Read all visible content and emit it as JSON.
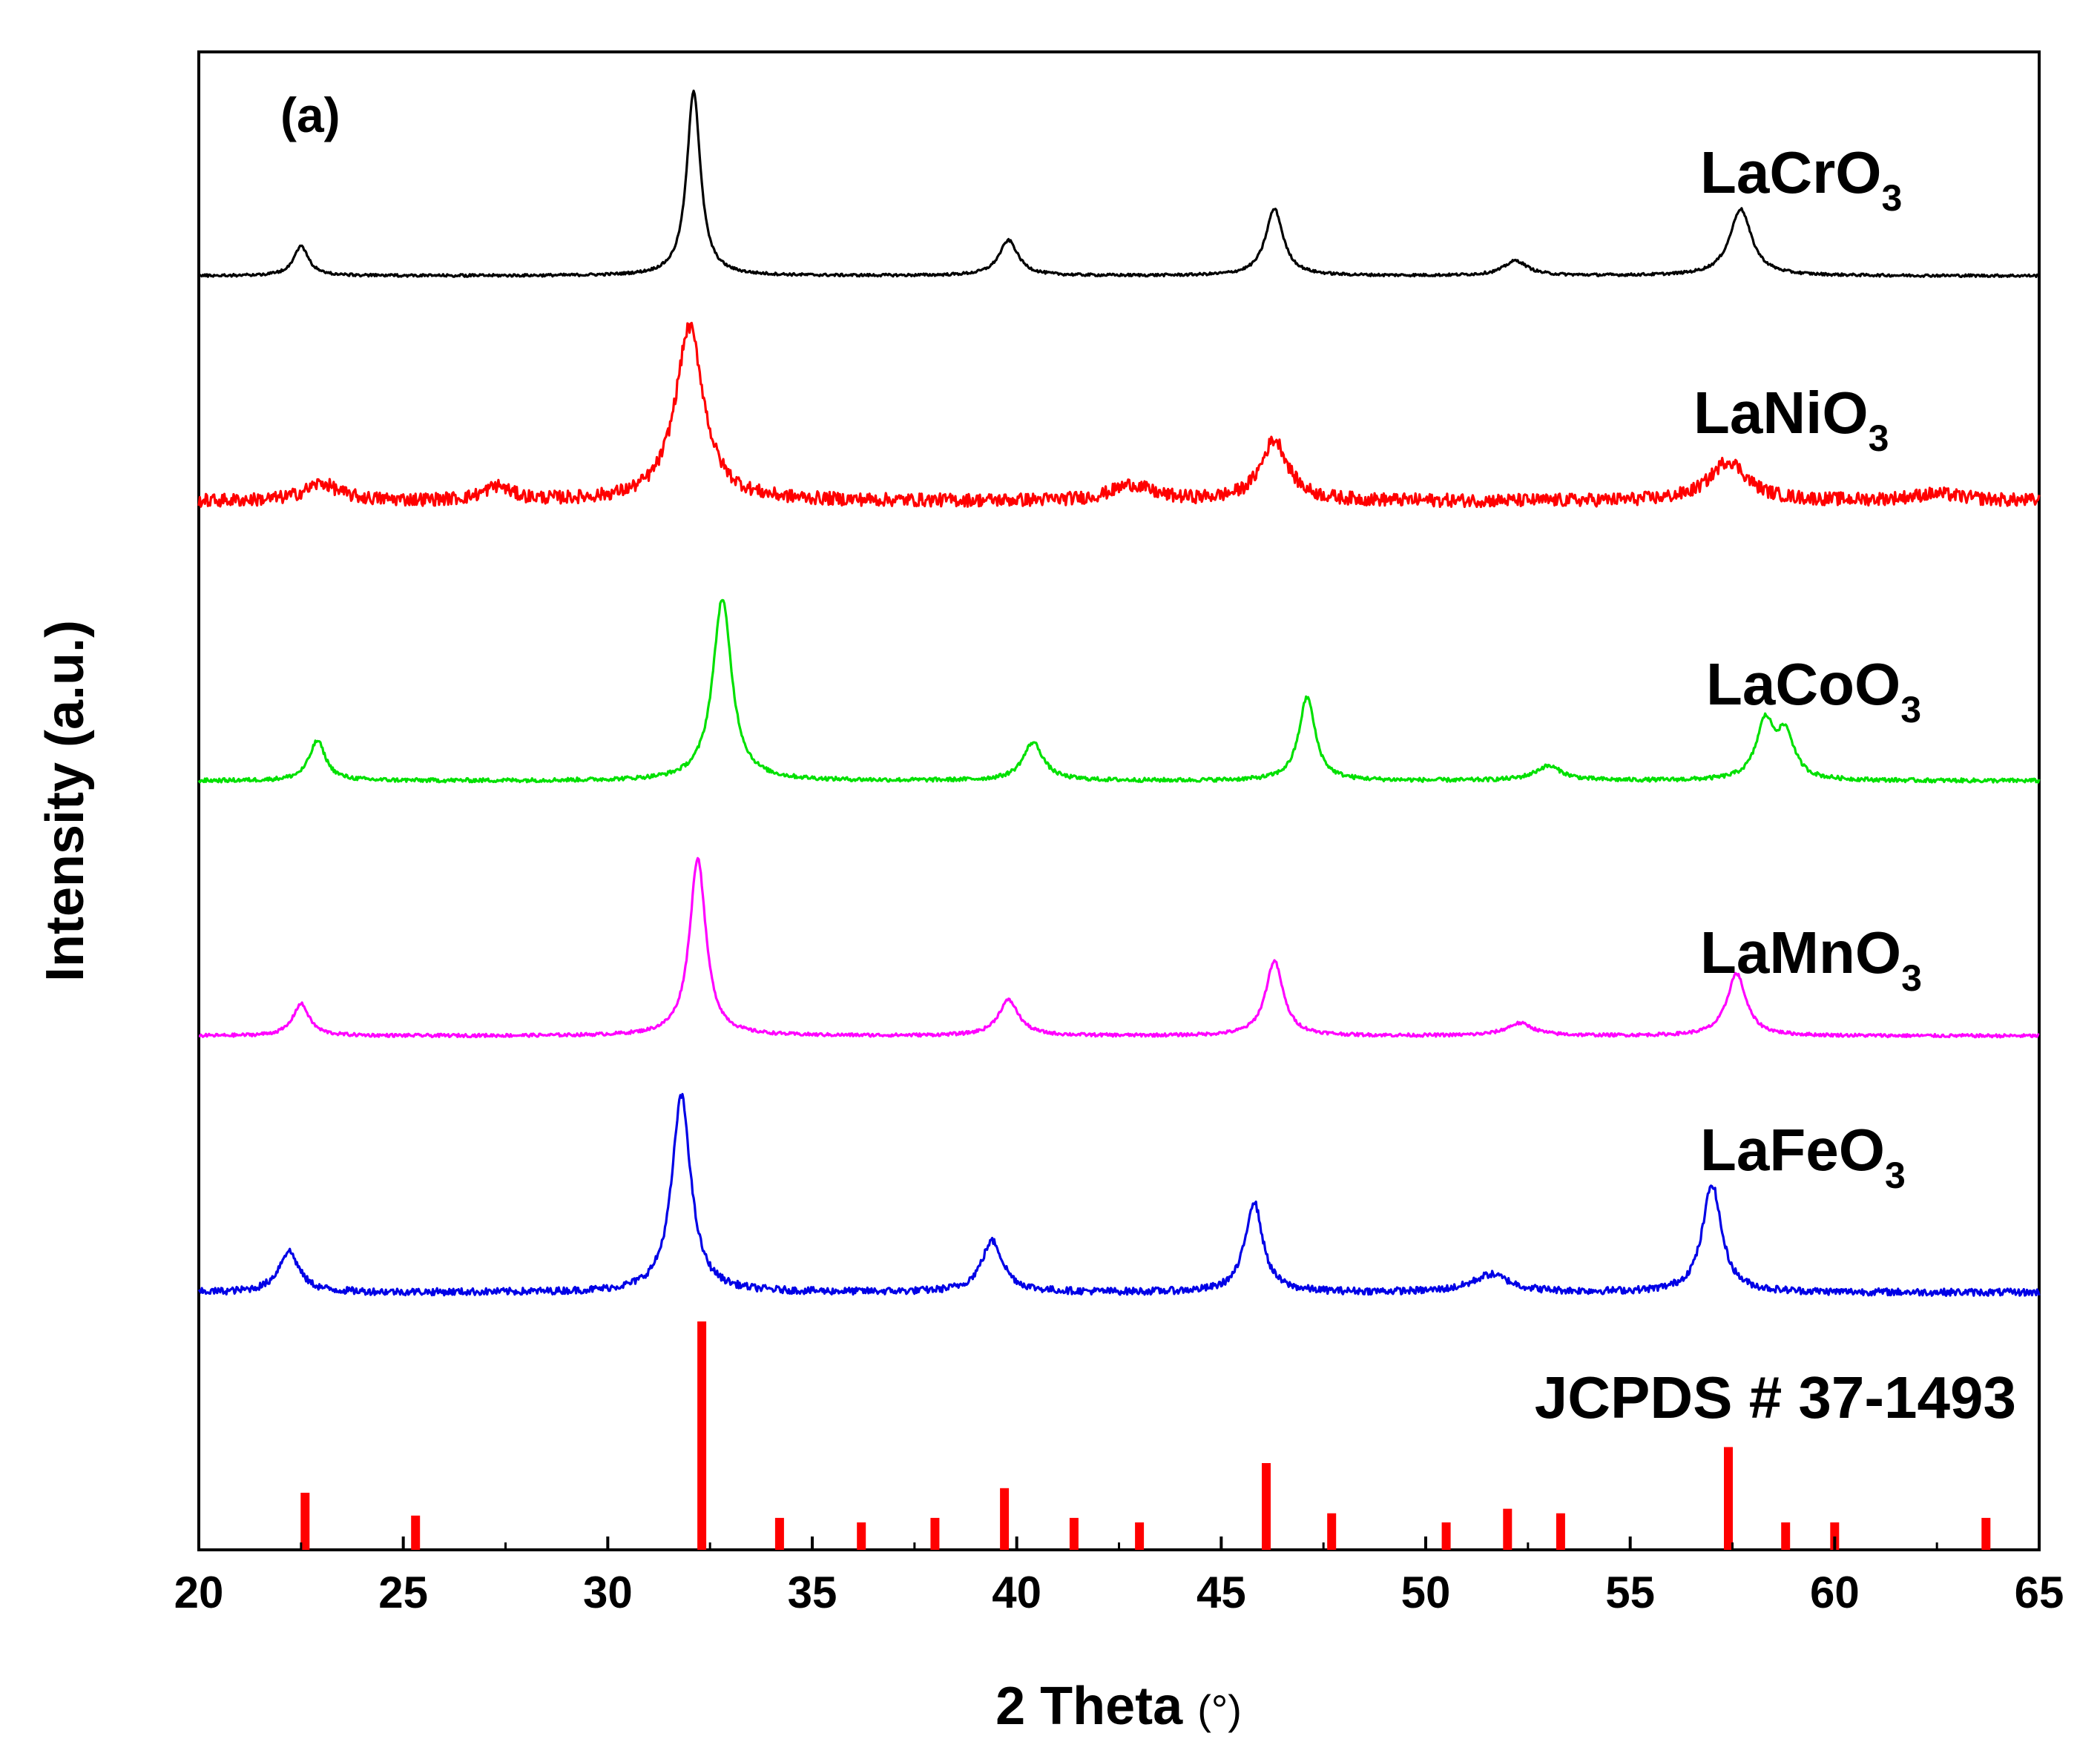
{
  "chart_data": {
    "type": "line",
    "panel_label": "(a)",
    "xlabel": "2 Theta",
    "xlabel_unit": "(°)",
    "ylabel": "Intensity (a.u.)",
    "xlim": [
      20,
      65
    ],
    "xticks": [
      20,
      25,
      30,
      35,
      40,
      45,
      50,
      55,
      60,
      65
    ],
    "yticks_shown": false,
    "grid": false,
    "legend": "none (series labelled inline, right side above each trace)",
    "series": [
      {
        "name": "LaCrO3",
        "formula_base": "LaCrO",
        "formula_sub": "3",
        "color": "#000000",
        "noise": 0.07,
        "peaks": [
          {
            "x": 22.5,
            "h": 1.6,
            "w": 0.22
          },
          {
            "x": 32.1,
            "h": 10.0,
            "w": 0.2
          },
          {
            "x": 39.8,
            "h": 1.9,
            "w": 0.28
          },
          {
            "x": 46.3,
            "h": 3.6,
            "w": 0.26
          },
          {
            "x": 52.2,
            "h": 0.8,
            "w": 0.35
          },
          {
            "x": 57.7,
            "h": 3.6,
            "w": 0.32
          }
        ]
      },
      {
        "name": "LaNiO3",
        "formula_base": "LaNiO",
        "formula_sub": "3",
        "color": "#ff0000",
        "noise": 0.38,
        "peaks": [
          {
            "x": 23.0,
            "h": 1.0,
            "w": 0.5
          },
          {
            "x": 27.3,
            "h": 0.8,
            "w": 0.4
          },
          {
            "x": 32.0,
            "h": 10.0,
            "w": 0.42
          },
          {
            "x": 42.8,
            "h": 0.9,
            "w": 0.6
          },
          {
            "x": 46.3,
            "h": 3.5,
            "w": 0.4
          },
          {
            "x": 57.4,
            "h": 2.3,
            "w": 0.55
          },
          {
            "x": 62.5,
            "h": 0.4,
            "w": 0.8
          }
        ]
      },
      {
        "name": "LaCoO3",
        "formula_base": "LaCoO",
        "formula_sub": "3",
        "color": "#00e000",
        "noise": 0.11,
        "peaks": [
          {
            "x": 22.9,
            "h": 2.2,
            "w": 0.24
          },
          {
            "x": 32.8,
            "h": 10.0,
            "w": 0.28
          },
          {
            "x": 40.4,
            "h": 2.1,
            "w": 0.3
          },
          {
            "x": 47.1,
            "h": 4.6,
            "w": 0.24
          },
          {
            "x": 53.0,
            "h": 0.8,
            "w": 0.4
          },
          {
            "x": 58.3,
            "h": 3.1,
            "w": 0.26
          },
          {
            "x": 58.8,
            "h": 2.4,
            "w": 0.26
          }
        ]
      },
      {
        "name": "LaMnO3",
        "formula_base": "LaMnO",
        "formula_sub": "3",
        "color": "#ff00ff",
        "noise": 0.09,
        "peaks": [
          {
            "x": 22.5,
            "h": 1.8,
            "w": 0.24
          },
          {
            "x": 32.2,
            "h": 10.0,
            "w": 0.24
          },
          {
            "x": 39.8,
            "h": 2.0,
            "w": 0.3
          },
          {
            "x": 46.3,
            "h": 4.2,
            "w": 0.26
          },
          {
            "x": 52.3,
            "h": 0.7,
            "w": 0.4
          },
          {
            "x": 57.6,
            "h": 3.5,
            "w": 0.28
          }
        ]
      },
      {
        "name": "LaFeO3",
        "formula_base": "LaFeO",
        "formula_sub": "3",
        "color": "#0000e6",
        "noise": 0.18,
        "peaks": [
          {
            "x": 22.2,
            "h": 2.1,
            "w": 0.3
          },
          {
            "x": 31.8,
            "h": 10.0,
            "w": 0.28
          },
          {
            "x": 39.4,
            "h": 2.6,
            "w": 0.32
          },
          {
            "x": 45.8,
            "h": 4.6,
            "w": 0.26
          },
          {
            "x": 51.6,
            "h": 0.9,
            "w": 0.55
          },
          {
            "x": 57.0,
            "h": 5.5,
            "w": 0.28
          }
        ]
      }
    ],
    "reference": {
      "name": "JCPDS # 37-1493",
      "color": "#ff0000",
      "sticks": [
        {
          "x": 22.6,
          "rel": 25
        },
        {
          "x": 25.3,
          "rel": 15
        },
        {
          "x": 32.3,
          "rel": 100
        },
        {
          "x": 34.2,
          "rel": 14
        },
        {
          "x": 36.2,
          "rel": 12
        },
        {
          "x": 38.0,
          "rel": 14
        },
        {
          "x": 39.7,
          "rel": 27
        },
        {
          "x": 41.4,
          "rel": 14
        },
        {
          "x": 43.0,
          "rel": 12
        },
        {
          "x": 46.1,
          "rel": 38
        },
        {
          "x": 47.7,
          "rel": 16
        },
        {
          "x": 50.5,
          "rel": 12
        },
        {
          "x": 52.0,
          "rel": 18
        },
        {
          "x": 53.3,
          "rel": 16
        },
        {
          "x": 57.4,
          "rel": 45
        },
        {
          "x": 58.8,
          "rel": 12
        },
        {
          "x": 60.0,
          "rel": 12
        },
        {
          "x": 63.7,
          "rel": 14
        }
      ]
    }
  }
}
